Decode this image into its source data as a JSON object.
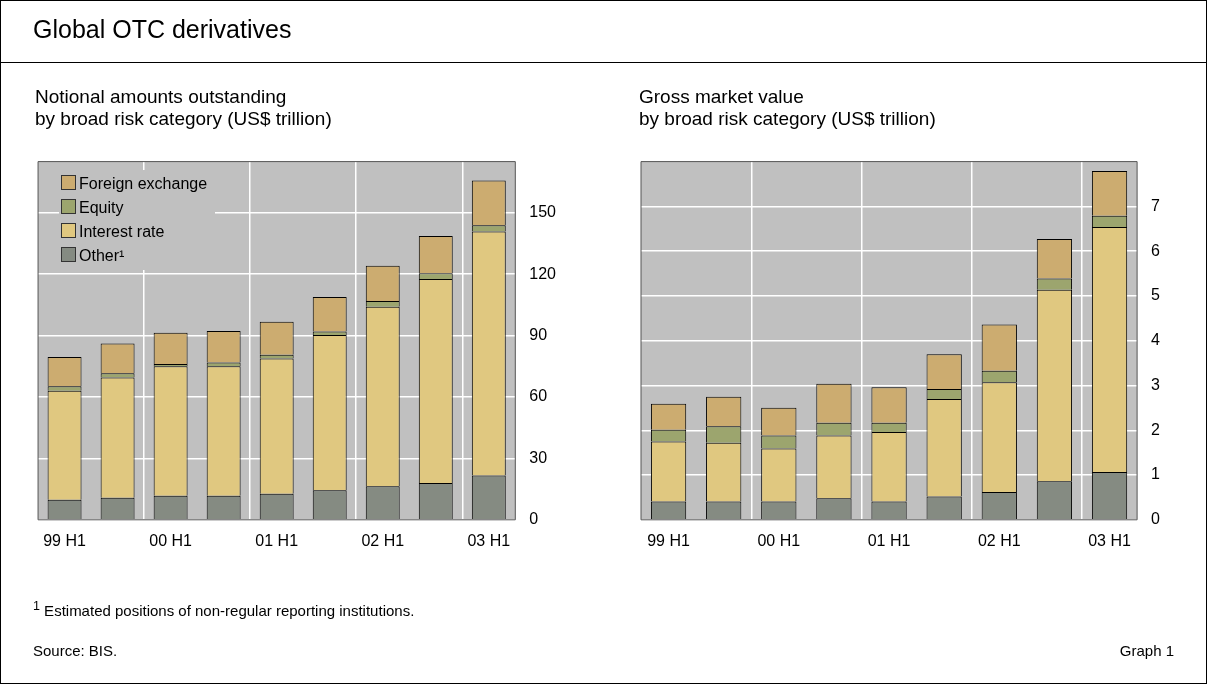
{
  "chart_data": [
    {
      "type": "other",
      "title": "Global OTC derivatives",
      "annotations": [
        "$^{1}$ Estimated positions of non-regular reporting institutions.",
        "Source: BIS.",
        "Graph 1"
      ]
    },
    {
      "type": "bar",
      "title": "Notional amounts outstanding",
      "subtitle": "by broad risk category (US$ trillion)",
      "categories": [
        "99 H1",
        null,
        "00 H1",
        null,
        "01 H1",
        null,
        "02 H1",
        null,
        "03 H1"
      ],
      "stacked": true,
      "ylim": [
        0,
        175
      ],
      "yticks": [
        0,
        30,
        60,
        90,
        120,
        150
      ],
      "grid": true,
      "legend": "top left",
      "series": [
        {
          "name": "Other¹",
          "color": "#858b82",
          "values": [
            9.8,
            10.8,
            11.7,
            11.7,
            12.7,
            14.4,
            16.4,
            18.0,
            21.6
          ]
        },
        {
          "name": "Interest rate",
          "color": "#e0c880",
          "values": [
            53.3,
            58.7,
            63.3,
            63.3,
            66.1,
            75.9,
            87.7,
            99.7,
            119.3
          ]
        },
        {
          "name": "Equity",
          "color": "#9ca56e",
          "values": [
            2.1,
            2.1,
            1.1,
            1.9,
            1.8,
            1.7,
            2.8,
            2.8,
            3.0
          ]
        },
        {
          "name": "Foreign exchange",
          "color": "#ccac70",
          "values": [
            14.3,
            14.5,
            15.3,
            15.3,
            16.1,
            16.8,
            17.2,
            18.1,
            21.9
          ]
        }
      ]
    },
    {
      "type": "bar",
      "title": "Gross market value",
      "subtitle": "by broad risk category (US$ trillion)",
      "categories": [
        "99 H1",
        null,
        "00 H1",
        null,
        "01 H1",
        null,
        "02 H1",
        null,
        "03 H1"
      ],
      "stacked": true,
      "ylim": [
        0,
        8
      ],
      "yticks": [
        0,
        1,
        2,
        3,
        4,
        5,
        6,
        7
      ],
      "grid": true,
      "series": [
        {
          "color": "#858b82",
          "values": [
            0.41,
            0.41,
            0.41,
            0.48,
            0.41,
            0.52,
            0.62,
            0.86,
            1.07
          ]
        },
        {
          "color": "#e0c880",
          "values": [
            1.34,
            1.31,
            1.18,
            1.4,
            1.55,
            2.18,
            2.45,
            4.28,
            5.47
          ]
        },
        {
          "color": "#9ca56e",
          "values": [
            0.26,
            0.37,
            0.29,
            0.29,
            0.21,
            0.22,
            0.26,
            0.25,
            0.25
          ]
        },
        {
          "color": "#ccac70",
          "values": [
            0.58,
            0.66,
            0.62,
            0.87,
            0.79,
            0.78,
            1.03,
            0.88,
            1.0
          ]
        }
      ]
    }
  ]
}
